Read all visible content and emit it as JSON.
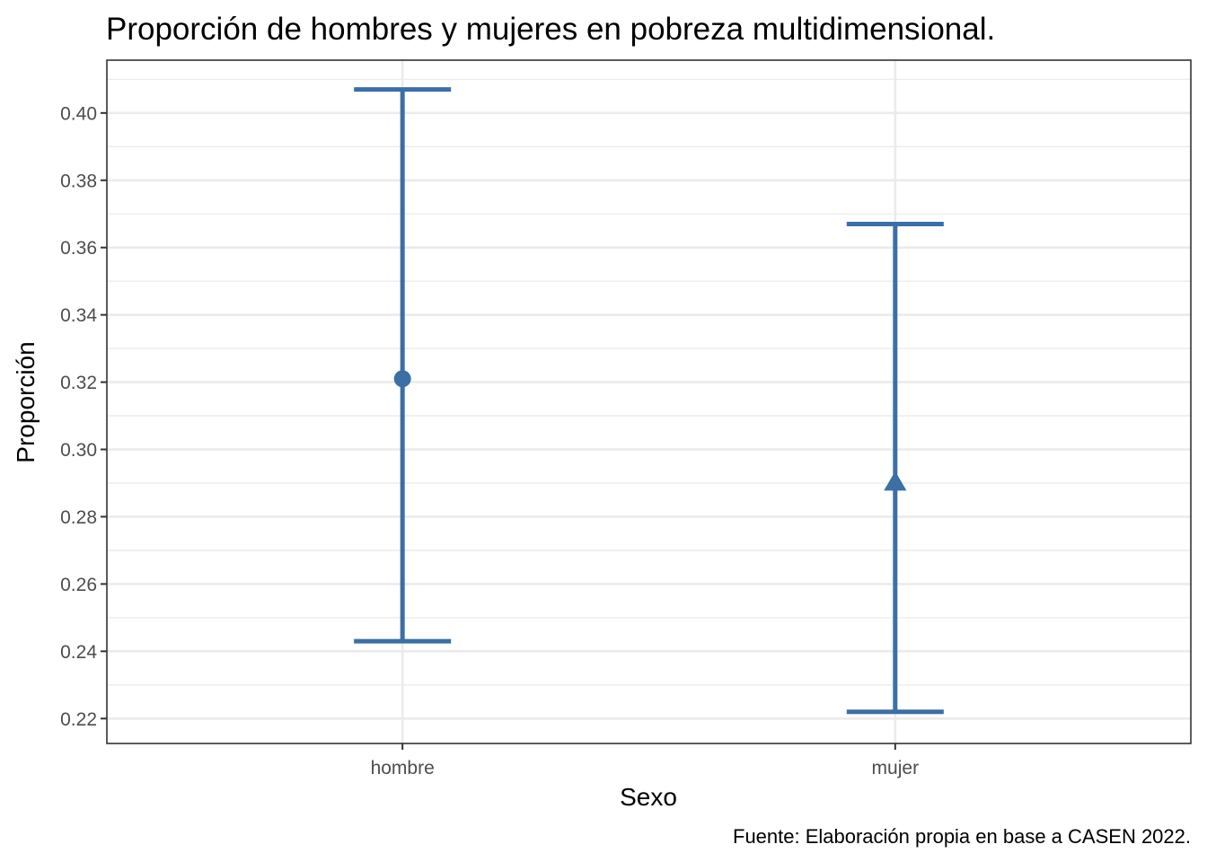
{
  "chart_data": {
    "type": "errorbar",
    "title": "Proporción de hombres y mujeres en pobreza multidimensional.",
    "xlabel": "Sexo",
    "ylabel": "Proporción",
    "caption": "Fuente: Elaboración propia en base a CASEN 2022.",
    "categories": [
      "hombre",
      "mujer"
    ],
    "points": [
      {
        "category": "hombre",
        "value": 0.321,
        "lower": 0.243,
        "upper": 0.407,
        "shape": "circle"
      },
      {
        "category": "mujer",
        "value": 0.29,
        "lower": 0.222,
        "upper": 0.367,
        "shape": "triangle"
      }
    ],
    "ylim": [
      0.2126,
      0.4157
    ],
    "yticks": [
      0.22,
      0.24,
      0.26,
      0.28,
      0.3,
      0.32,
      0.34,
      0.36,
      0.38,
      0.4
    ],
    "ytick_labels": [
      "0.22",
      "0.24",
      "0.26",
      "0.28",
      "0.30",
      "0.32",
      "0.34",
      "0.36",
      "0.38",
      "0.40"
    ],
    "grid": true,
    "color": "#3b6fa6"
  }
}
